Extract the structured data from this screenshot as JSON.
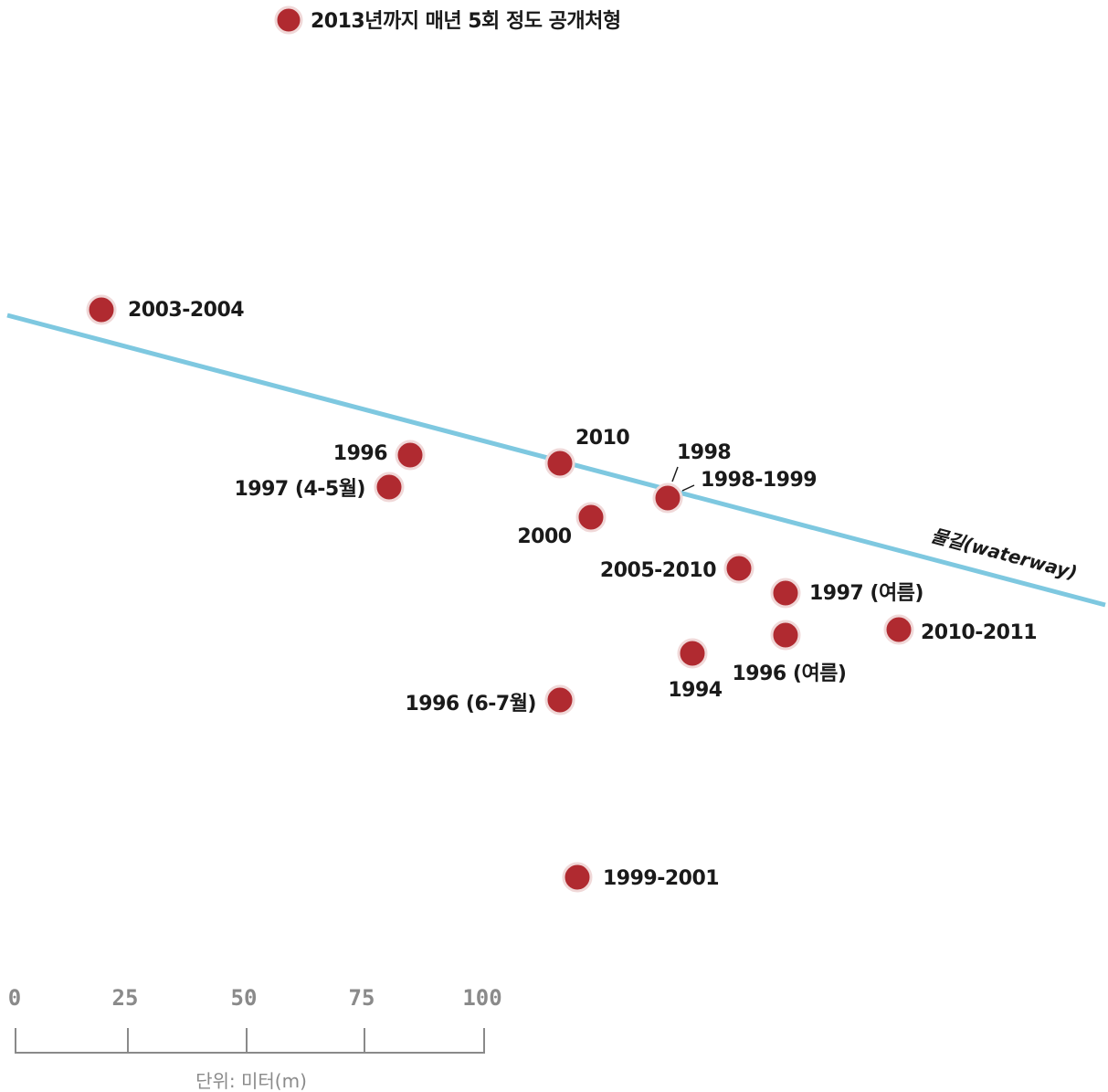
{
  "legend": {
    "label": "2013년까지 매년 5회 정도 공개처형",
    "color": "#b02a30"
  },
  "colors": {
    "marker": "#b02a30",
    "marker_ring": "#f0d8d8",
    "waterway": "#7ec8e0",
    "scale": "#8a8a8a"
  },
  "waterway": {
    "label": "물길(waterway)"
  },
  "sites": [
    {
      "label": "2003-2004"
    },
    {
      "label": "1996"
    },
    {
      "label": "1997 (4-5월)"
    },
    {
      "label": "2010"
    },
    {
      "label": "2000"
    },
    {
      "label": "1998"
    },
    {
      "label": "1998-1999"
    },
    {
      "label": "2005-2010"
    },
    {
      "label": "1997 (여름)"
    },
    {
      "label": "2010-2011"
    },
    {
      "label": "1996 (여름)"
    },
    {
      "label": "1994"
    },
    {
      "label": "1996 (6-7월)"
    },
    {
      "label": "1999-2001"
    }
  ],
  "scale_bar": {
    "ticks": [
      "0",
      "25",
      "50",
      "75",
      "100"
    ],
    "unit_label": "단위: 미터(m)"
  }
}
